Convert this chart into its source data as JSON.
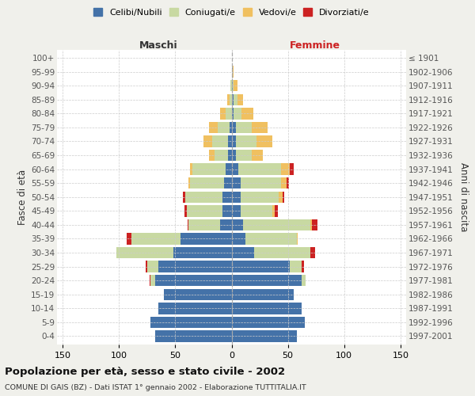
{
  "age_groups": [
    "0-4",
    "5-9",
    "10-14",
    "15-19",
    "20-24",
    "25-29",
    "30-34",
    "35-39",
    "40-44",
    "45-49",
    "50-54",
    "55-59",
    "60-64",
    "65-69",
    "70-74",
    "75-79",
    "80-84",
    "85-89",
    "90-94",
    "95-99",
    "100+"
  ],
  "birth_years": [
    "1997-2001",
    "1992-1996",
    "1987-1991",
    "1982-1986",
    "1977-1981",
    "1972-1976",
    "1967-1971",
    "1962-1966",
    "1957-1961",
    "1952-1956",
    "1947-1951",
    "1942-1946",
    "1937-1941",
    "1932-1936",
    "1927-1931",
    "1922-1926",
    "1917-1921",
    "1912-1916",
    "1907-1911",
    "1902-1906",
    "≤ 1901"
  ],
  "male_celibi": [
    68,
    72,
    65,
    60,
    68,
    65,
    52,
    45,
    10,
    8,
    8,
    7,
    5,
    3,
    3,
    2,
    0,
    0,
    0,
    0,
    0
  ],
  "male_coniugati": [
    0,
    0,
    0,
    0,
    4,
    10,
    50,
    44,
    28,
    32,
    33,
    30,
    30,
    12,
    14,
    10,
    5,
    2,
    1,
    0,
    0
  ],
  "male_vedovi": [
    0,
    0,
    0,
    0,
    0,
    0,
    0,
    0,
    0,
    0,
    0,
    1,
    2,
    5,
    8,
    8,
    5,
    2,
    0,
    0,
    0
  ],
  "male_divorziati": [
    0,
    0,
    0,
    0,
    1,
    1,
    0,
    4,
    1,
    2,
    2,
    0,
    0,
    0,
    0,
    0,
    0,
    0,
    0,
    0,
    0
  ],
  "female_nubili": [
    58,
    65,
    62,
    55,
    62,
    52,
    20,
    12,
    10,
    8,
    8,
    8,
    6,
    4,
    4,
    4,
    2,
    2,
    1,
    1,
    0
  ],
  "female_coniugate": [
    0,
    0,
    0,
    0,
    4,
    10,
    50,
    46,
    60,
    28,
    34,
    36,
    38,
    14,
    18,
    14,
    7,
    3,
    1,
    0,
    0
  ],
  "female_vedove": [
    0,
    0,
    0,
    0,
    0,
    0,
    0,
    1,
    1,
    2,
    3,
    5,
    8,
    10,
    14,
    14,
    10,
    5,
    3,
    1,
    0
  ],
  "female_divorziate": [
    0,
    0,
    0,
    0,
    0,
    2,
    4,
    0,
    5,
    3,
    2,
    2,
    3,
    0,
    0,
    0,
    0,
    0,
    0,
    0,
    0
  ],
  "color_celibi": "#4472a8",
  "color_coniugati": "#c8d9a2",
  "color_vedovi": "#f0c060",
  "color_divorziati": "#cc2222",
  "xlim": 155,
  "title": "Popolazione per età, sesso e stato civile - 2002",
  "subtitle": "COMUNE DI GAIS (BZ) - Dati ISTAT 1° gennaio 2002 - Elaborazione TUTTITALIA.IT",
  "ylabel": "Fasce di età",
  "ylabel_right": "Anni di nascita",
  "label_maschi": "Maschi",
  "label_femmine": "Femmine",
  "bg_color": "#f0f0eb",
  "plot_bg": "#ffffff",
  "legend_labels": [
    "Celibi/Nubili",
    "Coniugati/e",
    "Vedovi/e",
    "Divorziati/e"
  ]
}
